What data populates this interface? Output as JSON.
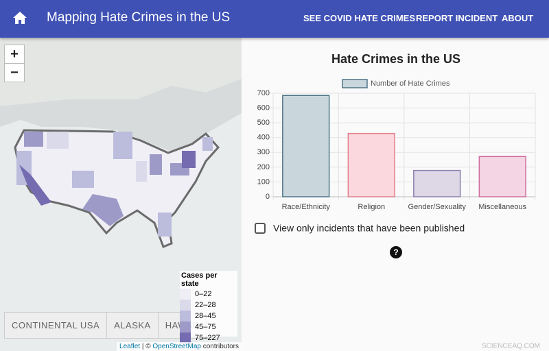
{
  "header": {
    "title": "Mapping Hate Crimes in the US",
    "nav": [
      "SEE COVID HATE CRIMES",
      "REPORT INCIDENT",
      "ABOUT"
    ]
  },
  "map": {
    "zoom_in": "+",
    "zoom_out": "−",
    "legend": {
      "title": "Cases per state",
      "items": [
        {
          "label": "0–22",
          "color": "#efedf5"
        },
        {
          "label": "22–28",
          "color": "#dadaeb"
        },
        {
          "label": "28–45",
          "color": "#bcbddc"
        },
        {
          "label": "45–75",
          "color": "#9e9ac8"
        },
        {
          "label": "75–227",
          "color": "#756bb1"
        }
      ]
    },
    "buttons": [
      "CONTINENTAL USA",
      "ALASKA",
      "HAWAII"
    ],
    "attribution": {
      "leaflet": "Leaflet",
      "separator": "| ©",
      "osm": "OpenStreetMap",
      "suffix": "contributors"
    }
  },
  "chart_data": {
    "type": "bar",
    "title": "Hate Crimes in the US",
    "categories": [
      "Race/Ethnicity",
      "Religion",
      "Gender/Sexuality",
      "Miscellaneous"
    ],
    "series": [
      {
        "name": "Number of Hate Crimes",
        "color": "#c9d7dd",
        "values": [
          685,
          428,
          178,
          272
        ]
      }
    ],
    "bar_colors": [
      "#c9d7dd",
      "#fbd8dd",
      "#ddd7e6",
      "#f4d5e4"
    ],
    "bar_borders": [
      "#4d7486",
      "#e27d8c",
      "#8c7fae",
      "#cf6a9d"
    ],
    "ylim": [
      0,
      700
    ],
    "yticks": [
      0,
      100,
      200,
      300,
      400,
      500,
      600,
      700
    ],
    "grid": true
  },
  "checkbox": {
    "label": "View only incidents that have been published",
    "checked": false
  },
  "help_icon": "?",
  "watermark": "SCIENCEAQ.COM"
}
